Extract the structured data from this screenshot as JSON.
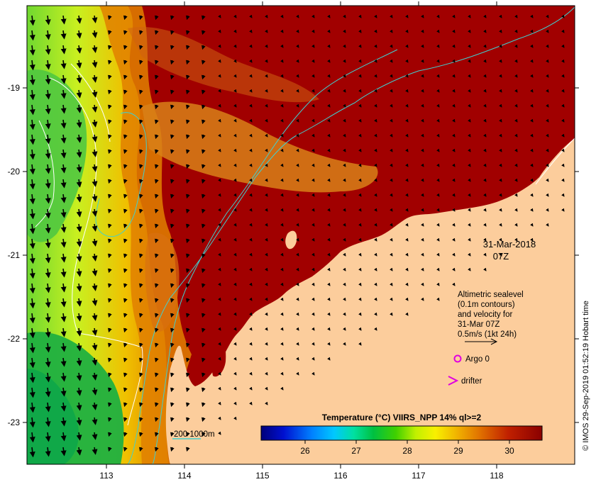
{
  "map": {
    "axes": {
      "x_ticks": [
        "113",
        "114",
        "115",
        "116",
        "117",
        "118"
      ],
      "y_ticks": [
        "-19",
        "-20",
        "-21",
        "-22",
        "-23"
      ]
    },
    "timestamp": {
      "date": "31-Mar-2018",
      "time": "07Z"
    },
    "legend": {
      "lines": [
        "Altimetric sealevel",
        "(0.1m contours)",
        "and velocity for",
        "31-Mar 07Z",
        "0.5m/s (1kt 24h)"
      ],
      "argo_label": "Argo 0",
      "drifter_label": "drifter"
    },
    "bathymetry_label": "200  1000m",
    "colorbar": {
      "title": "Temperature (°C) VIIRS_NPP 14% ql>=2",
      "ticks": [
        "26",
        "27",
        "28",
        "29",
        "30"
      ]
    },
    "credit": "© IMOS 29-Sep-2019 01:52:19 Hobart time",
    "colors": {
      "land": "#fccd9c",
      "warm_sst": "#a10000",
      "contour": "#ffffff",
      "bathymetry": "#40d0d0",
      "argo": "#e000e0",
      "drifter": "#e000e0"
    }
  }
}
